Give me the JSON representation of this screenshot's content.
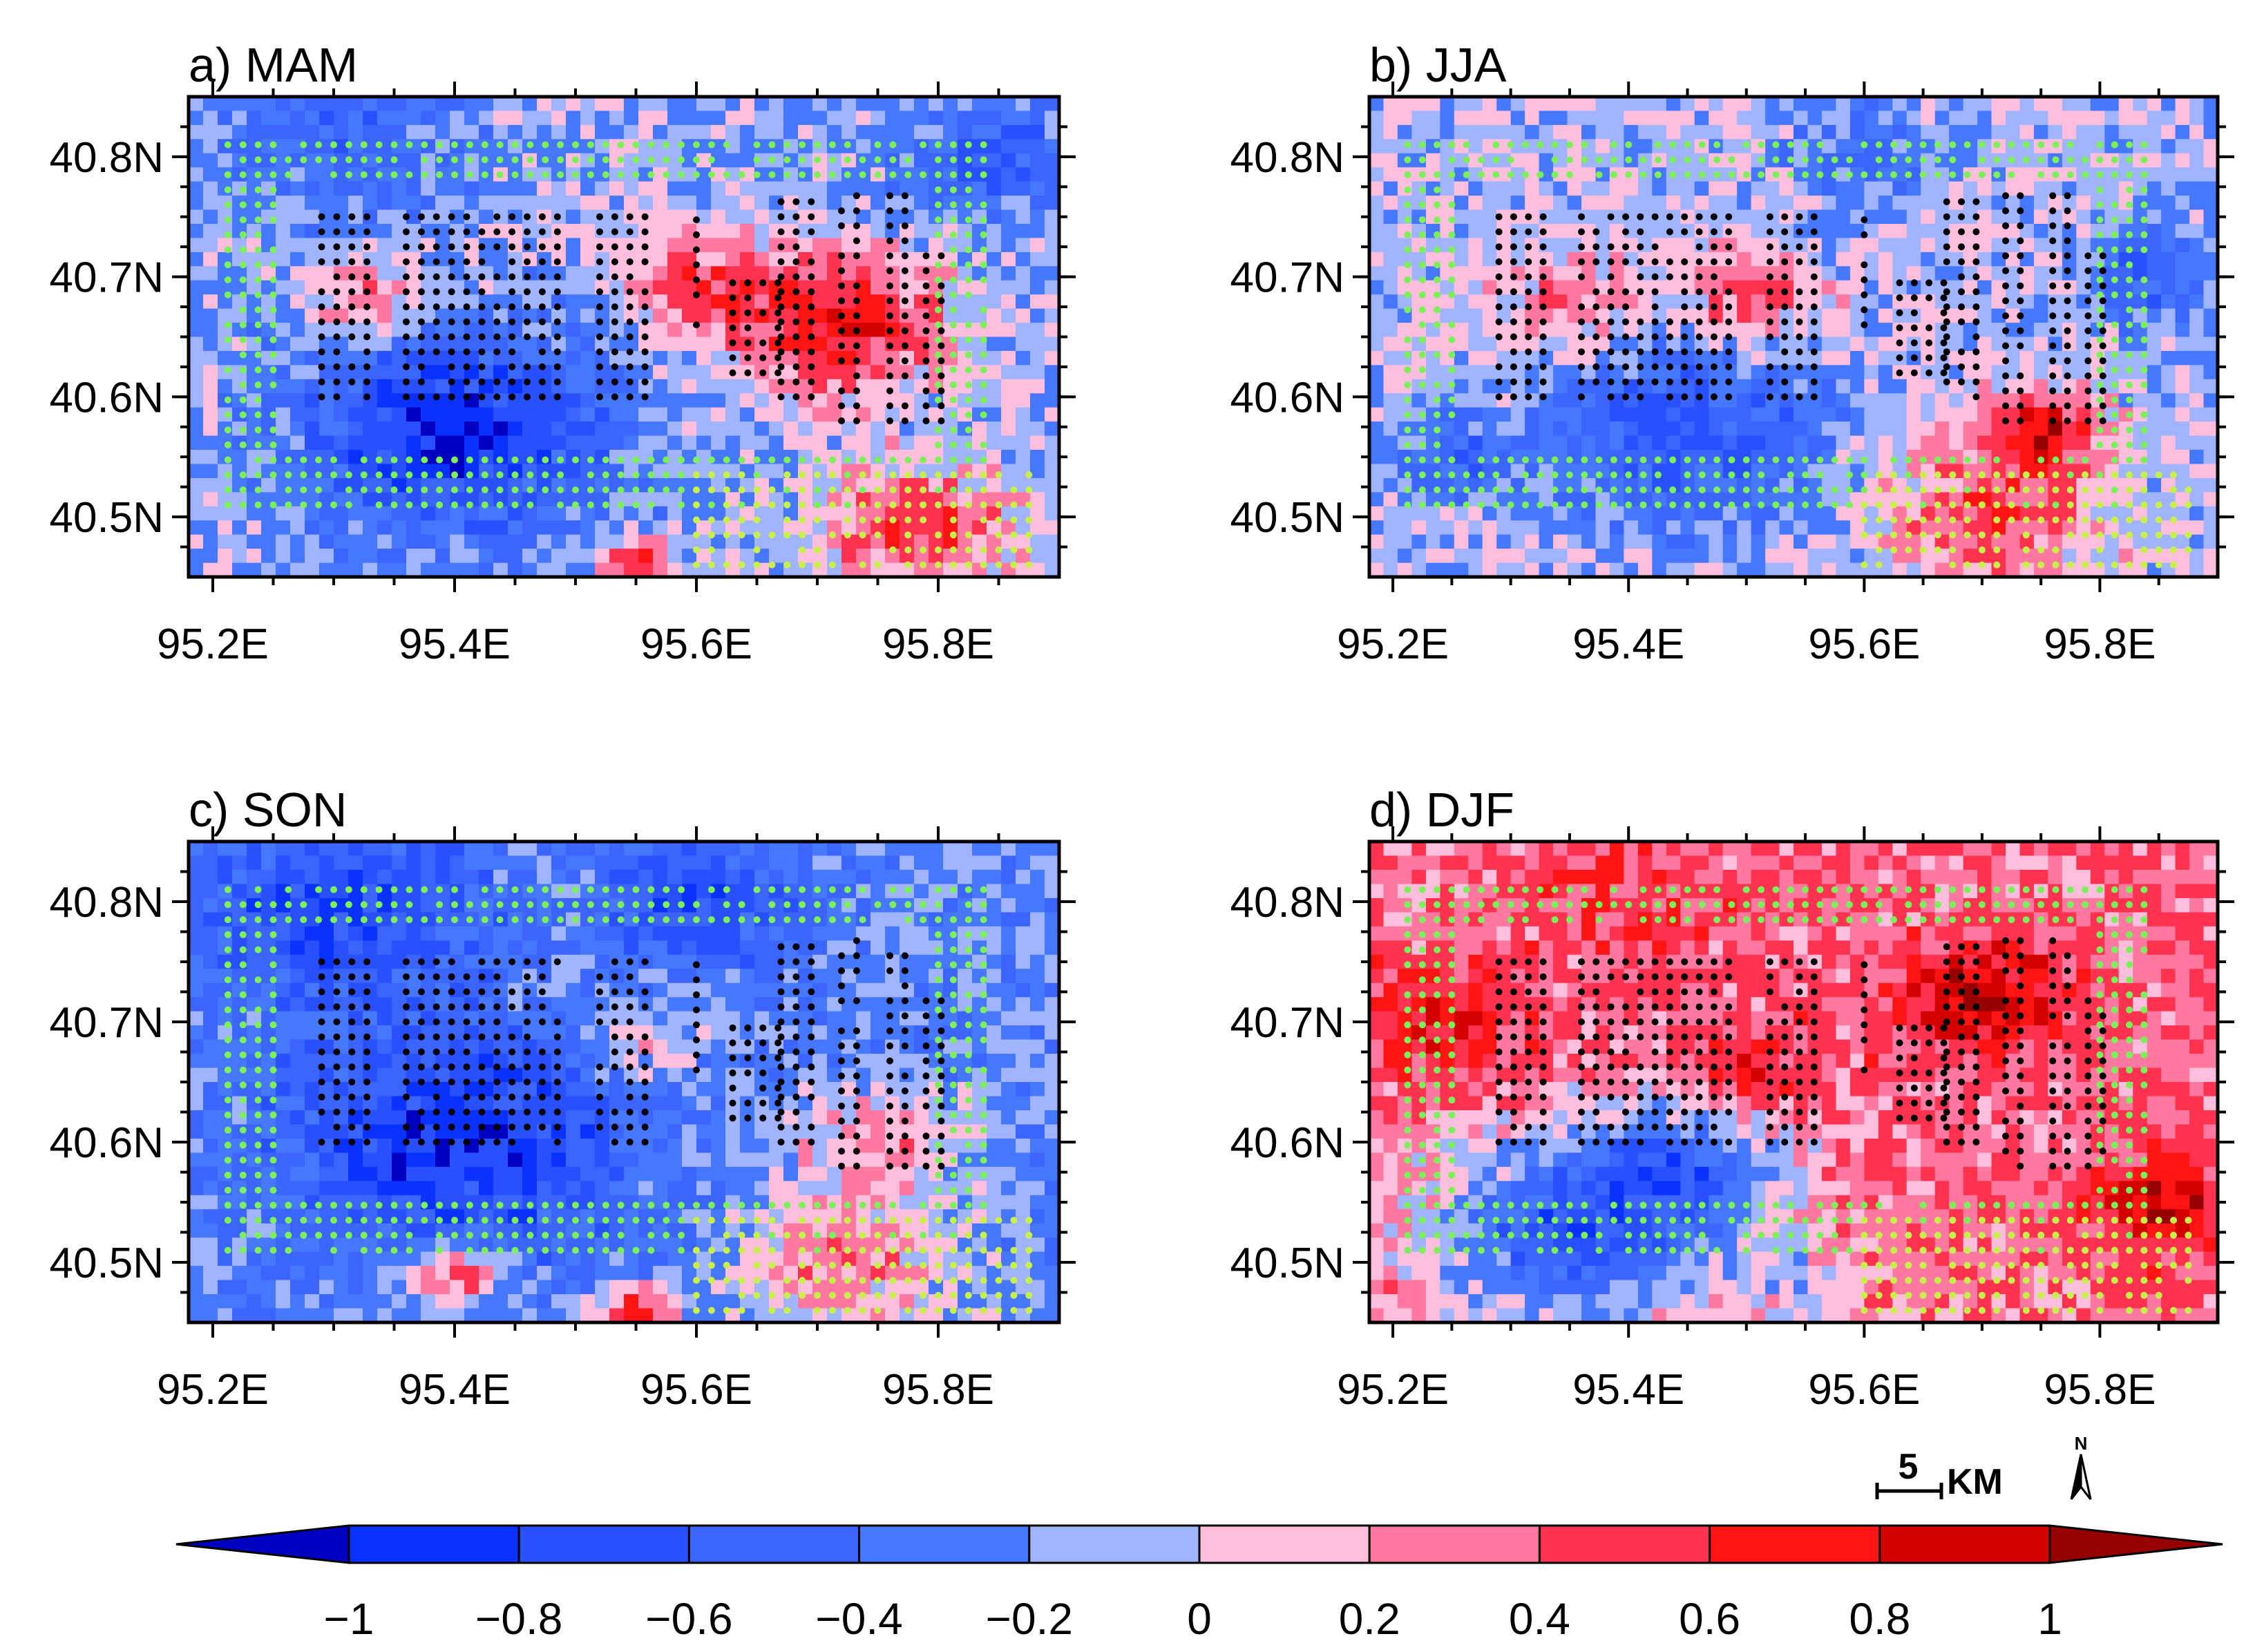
{
  "figure": {
    "panels": [
      {
        "id": "a",
        "title": "a)  MAM"
      },
      {
        "id": "b",
        "title": "b)  JJA"
      },
      {
        "id": "c",
        "title": "c)  SON"
      },
      {
        "id": "d",
        "title": "d)  DJF"
      }
    ],
    "axes": {
      "lat_labels": [
        "40.8N",
        "40.7N",
        "40.6N",
        "40.5N"
      ],
      "lon_labels": [
        "95.2E",
        "95.4E",
        "95.6E",
        "95.8E"
      ]
    },
    "scale_bar": {
      "value": "5",
      "unit": "KM"
    },
    "north_arrow": {
      "label": "N"
    },
    "colorbar": {
      "tick_labels": [
        "−1",
        "−0.8",
        "−0.6",
        "−0.4",
        "−0.2",
        "0",
        "0.2",
        "0.4",
        "0.6",
        "0.8",
        "1"
      ],
      "colors": [
        "#0000c0",
        "#0a32ff",
        "#2850ff",
        "#3c64ff",
        "#4678ff",
        "#a0b4ff",
        "#ffbedc",
        "#ff78a0",
        "#ff3250",
        "#ff1414",
        "#d20000",
        "#960000"
      ]
    }
  },
  "chart_data": {
    "type": "heatmap",
    "map_type": "lat-lon filled contour with stippling",
    "lon_range": [
      95.18,
      95.9
    ],
    "lat_range": [
      40.45,
      40.85
    ],
    "contour_levels": [
      -1,
      -0.8,
      -0.6,
      -0.4,
      -0.2,
      0,
      0.2,
      0.4,
      0.6,
      0.8,
      1
    ],
    "panels": [
      {
        "title": "MAM",
        "dominant": "positive core near 95.7E 40.65N, negative band 40.55-40.6N"
      },
      {
        "title": "JJA",
        "dominant": "mixed, positive core near 95.75E 40.57N"
      },
      {
        "title": "SON",
        "dominant": "mostly negative, positive in southeast"
      },
      {
        "title": "DJF",
        "dominant": "mostly positive, negative in southwest"
      }
    ]
  }
}
